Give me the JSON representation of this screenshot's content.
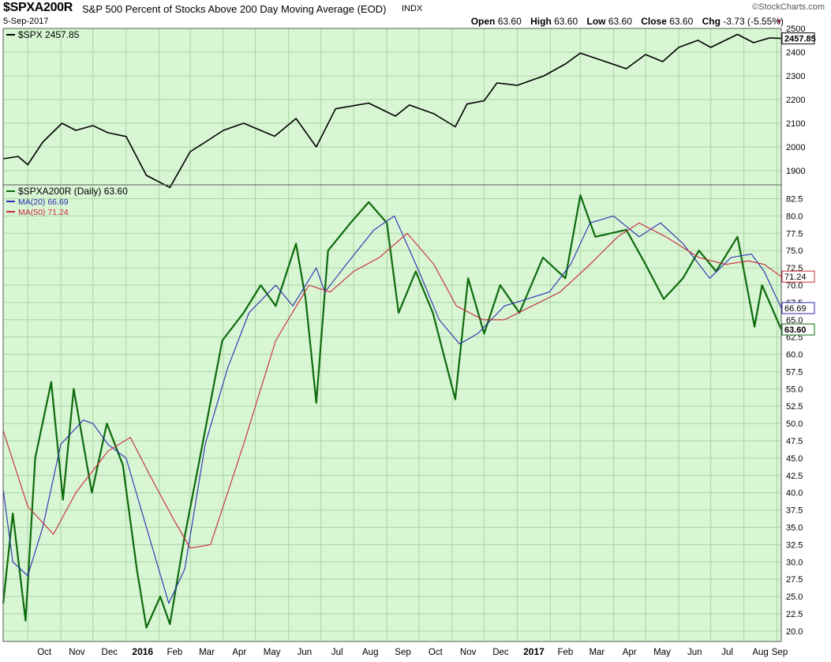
{
  "header": {
    "symbol": "$SPXA200R",
    "name": "S&P 500 Percent of Stocks Above 200 Day Moving Average (EOD)",
    "exchange": "INDX",
    "date": "5-Sep-2017",
    "brand": "©StockCharts.com",
    "open_label": "Open",
    "open": "63.60",
    "high_label": "High",
    "high": "63.60",
    "low_label": "Low",
    "low": "63.60",
    "close_label": "Close",
    "close": "63.60",
    "chg_label": "Chg",
    "chg": "-3.73 (-5.55%)",
    "arrow": "▼"
  },
  "chart_data": [
    {
      "type": "line",
      "panel": "top",
      "legend": "$SPX 2457.85",
      "last_value": "2457.85",
      "ylim": [
        1840,
        2500
      ],
      "yticks": [
        1900,
        2000,
        2100,
        2200,
        2300,
        2400,
        2500
      ],
      "grid": true,
      "legend_position": "top-left",
      "series": [
        {
          "name": "$SPX",
          "color": "#000000",
          "x": [
            "2015-09-08",
            "2015-09-22",
            "2015-10-01",
            "2015-10-15",
            "2015-11-02",
            "2015-11-15",
            "2015-12-01",
            "2015-12-15",
            "2016-01-01",
            "2016-01-20",
            "2016-02-11",
            "2016-03-01",
            "2016-03-15",
            "2016-04-01",
            "2016-04-20",
            "2016-05-19",
            "2016-06-08",
            "2016-06-27",
            "2016-07-15",
            "2016-08-15",
            "2016-09-09",
            "2016-09-22",
            "2016-10-15",
            "2016-11-04",
            "2016-11-15",
            "2016-12-01",
            "2016-12-13",
            "2017-01-01",
            "2017-01-26",
            "2017-02-15",
            "2017-03-01",
            "2017-04-13",
            "2017-05-01",
            "2017-05-17",
            "2017-06-01",
            "2017-06-19",
            "2017-07-01",
            "2017-07-26",
            "2017-08-10",
            "2017-08-25",
            "2017-09-05"
          ],
          "values": [
            1950,
            1960,
            1925,
            2020,
            2100,
            2070,
            2090,
            2060,
            2044,
            1880,
            1829,
            1980,
            2020,
            2070,
            2100,
            2045,
            2120,
            2000,
            2161,
            2185,
            2130,
            2177,
            2140,
            2085,
            2181,
            2195,
            2270,
            2260,
            2300,
            2350,
            2396,
            2330,
            2390,
            2360,
            2420,
            2450,
            2420,
            2475,
            2440,
            2460,
            2457.85
          ]
        }
      ]
    },
    {
      "type": "line",
      "panel": "bottom",
      "ylim": [
        18.5,
        84.5
      ],
      "yticks": [
        20.0,
        22.5,
        25.0,
        27.5,
        30.0,
        32.5,
        35.0,
        37.5,
        40.0,
        42.5,
        45.0,
        47.5,
        50.0,
        52.5,
        55.0,
        57.5,
        60.0,
        62.5,
        65.0,
        67.5,
        70.0,
        72.5,
        75.0,
        77.5,
        80.0,
        82.5
      ],
      "xticks": [
        "Oct",
        "Nov",
        "Dec",
        "2016",
        "Feb",
        "Mar",
        "Apr",
        "May",
        "Jun",
        "Jul",
        "Aug",
        "Sep",
        "Oct",
        "Nov",
        "Dec",
        "2017",
        "Feb",
        "Mar",
        "Apr",
        "May",
        "Jun",
        "Jul",
        "Aug",
        "Sep"
      ],
      "grid": true,
      "legend_position": "top-left",
      "series": [
        {
          "name": "$SPXA200R (Daily)",
          "legend": "$SPXA200R (Daily) 63.60",
          "last_value": "63.60",
          "color": "#0d6b0d",
          "x": [
            "2015-09-08",
            "2015-09-17",
            "2015-09-29",
            "2015-10-08",
            "2015-10-23",
            "2015-11-03",
            "2015-11-13",
            "2015-11-30",
            "2015-12-14",
            "2015-12-29",
            "2016-01-11",
            "2016-01-20",
            "2016-02-02",
            "2016-02-11",
            "2016-02-24",
            "2016-03-10",
            "2016-03-31",
            "2016-04-20",
            "2016-05-06",
            "2016-05-20",
            "2016-06-08",
            "2016-06-17",
            "2016-06-27",
            "2016-07-08",
            "2016-07-29",
            "2016-08-15",
            "2016-09-01",
            "2016-09-12",
            "2016-09-28",
            "2016-10-14",
            "2016-11-04",
            "2016-11-16",
            "2016-12-01",
            "2016-12-16",
            "2017-01-03",
            "2017-01-25",
            "2017-02-15",
            "2017-03-01",
            "2017-03-15",
            "2017-04-13",
            "2017-05-01",
            "2017-05-18",
            "2017-06-05",
            "2017-06-20",
            "2017-07-06",
            "2017-07-26",
            "2017-08-11",
            "2017-08-18",
            "2017-09-05"
          ],
          "values": [
            24,
            37,
            21.5,
            45,
            56,
            39,
            55,
            40,
            50,
            44,
            29,
            20.5,
            25,
            21,
            33,
            45,
            62,
            66,
            70,
            67,
            76,
            68,
            53,
            75,
            79,
            82,
            79,
            66,
            72,
            66,
            53.5,
            71,
            63,
            70,
            66,
            74,
            71,
            83,
            77,
            78,
            73,
            68,
            71,
            75,
            72,
            77,
            64,
            70,
            63.6
          ]
        },
        {
          "name": "MA(20)",
          "legend": "MA(20) 66.69",
          "last_value": "66.69",
          "color": "#2b2bb3",
          "x": [
            "2015-09-08",
            "2015-09-17",
            "2015-10-01",
            "2015-10-15",
            "2015-11-01",
            "2015-11-22",
            "2015-12-01",
            "2015-12-15",
            "2016-01-01",
            "2016-01-20",
            "2016-02-10",
            "2016-02-25",
            "2016-03-15",
            "2016-04-05",
            "2016-04-25",
            "2016-05-20",
            "2016-06-05",
            "2016-06-27",
            "2016-07-05",
            "2016-07-25",
            "2016-08-20",
            "2016-09-08",
            "2016-10-01",
            "2016-10-20",
            "2016-11-08",
            "2016-11-25",
            "2016-12-20",
            "2017-01-10",
            "2017-01-31",
            "2017-02-20",
            "2017-03-10",
            "2017-04-01",
            "2017-04-25",
            "2017-05-15",
            "2017-06-05",
            "2017-06-30",
            "2017-07-20",
            "2017-08-08",
            "2017-08-20",
            "2017-09-05"
          ],
          "values": [
            40.5,
            30,
            28,
            35,
            47,
            50.5,
            50,
            47,
            45,
            35,
            24,
            29,
            47,
            58,
            66,
            70,
            67,
            72.5,
            69,
            73,
            78,
            80,
            72,
            65,
            61.5,
            63,
            67,
            68,
            69,
            73,
            79,
            80,
            77,
            79,
            76,
            71,
            74,
            74.5,
            72,
            66.69
          ]
        },
        {
          "name": "MA(50)",
          "legend": "MA(50) 71.24",
          "last_value": "71.24",
          "color": "#c8283c",
          "x": [
            "2015-09-08",
            "2015-10-01",
            "2015-10-25",
            "2015-11-15",
            "2015-12-15",
            "2016-01-05",
            "2016-01-25",
            "2016-02-15",
            "2016-03-01",
            "2016-03-20",
            "2016-04-20",
            "2016-05-20",
            "2016-06-20",
            "2016-07-10",
            "2016-08-01",
            "2016-08-25",
            "2016-09-20",
            "2016-10-15",
            "2016-11-05",
            "2016-11-30",
            "2016-12-20",
            "2017-01-15",
            "2017-02-10",
            "2017-03-10",
            "2017-04-05",
            "2017-04-25",
            "2017-05-20",
            "2017-06-20",
            "2017-07-15",
            "2017-08-05",
            "2017-08-20",
            "2017-09-05"
          ],
          "values": [
            49,
            38,
            34,
            40,
            46,
            48,
            42,
            36,
            32,
            32.5,
            47,
            62,
            70,
            69,
            72,
            74,
            77.5,
            73,
            67,
            65,
            65,
            67,
            69,
            73,
            77,
            79,
            77,
            74,
            73,
            73.5,
            73,
            71.24
          ]
        }
      ]
    }
  ]
}
